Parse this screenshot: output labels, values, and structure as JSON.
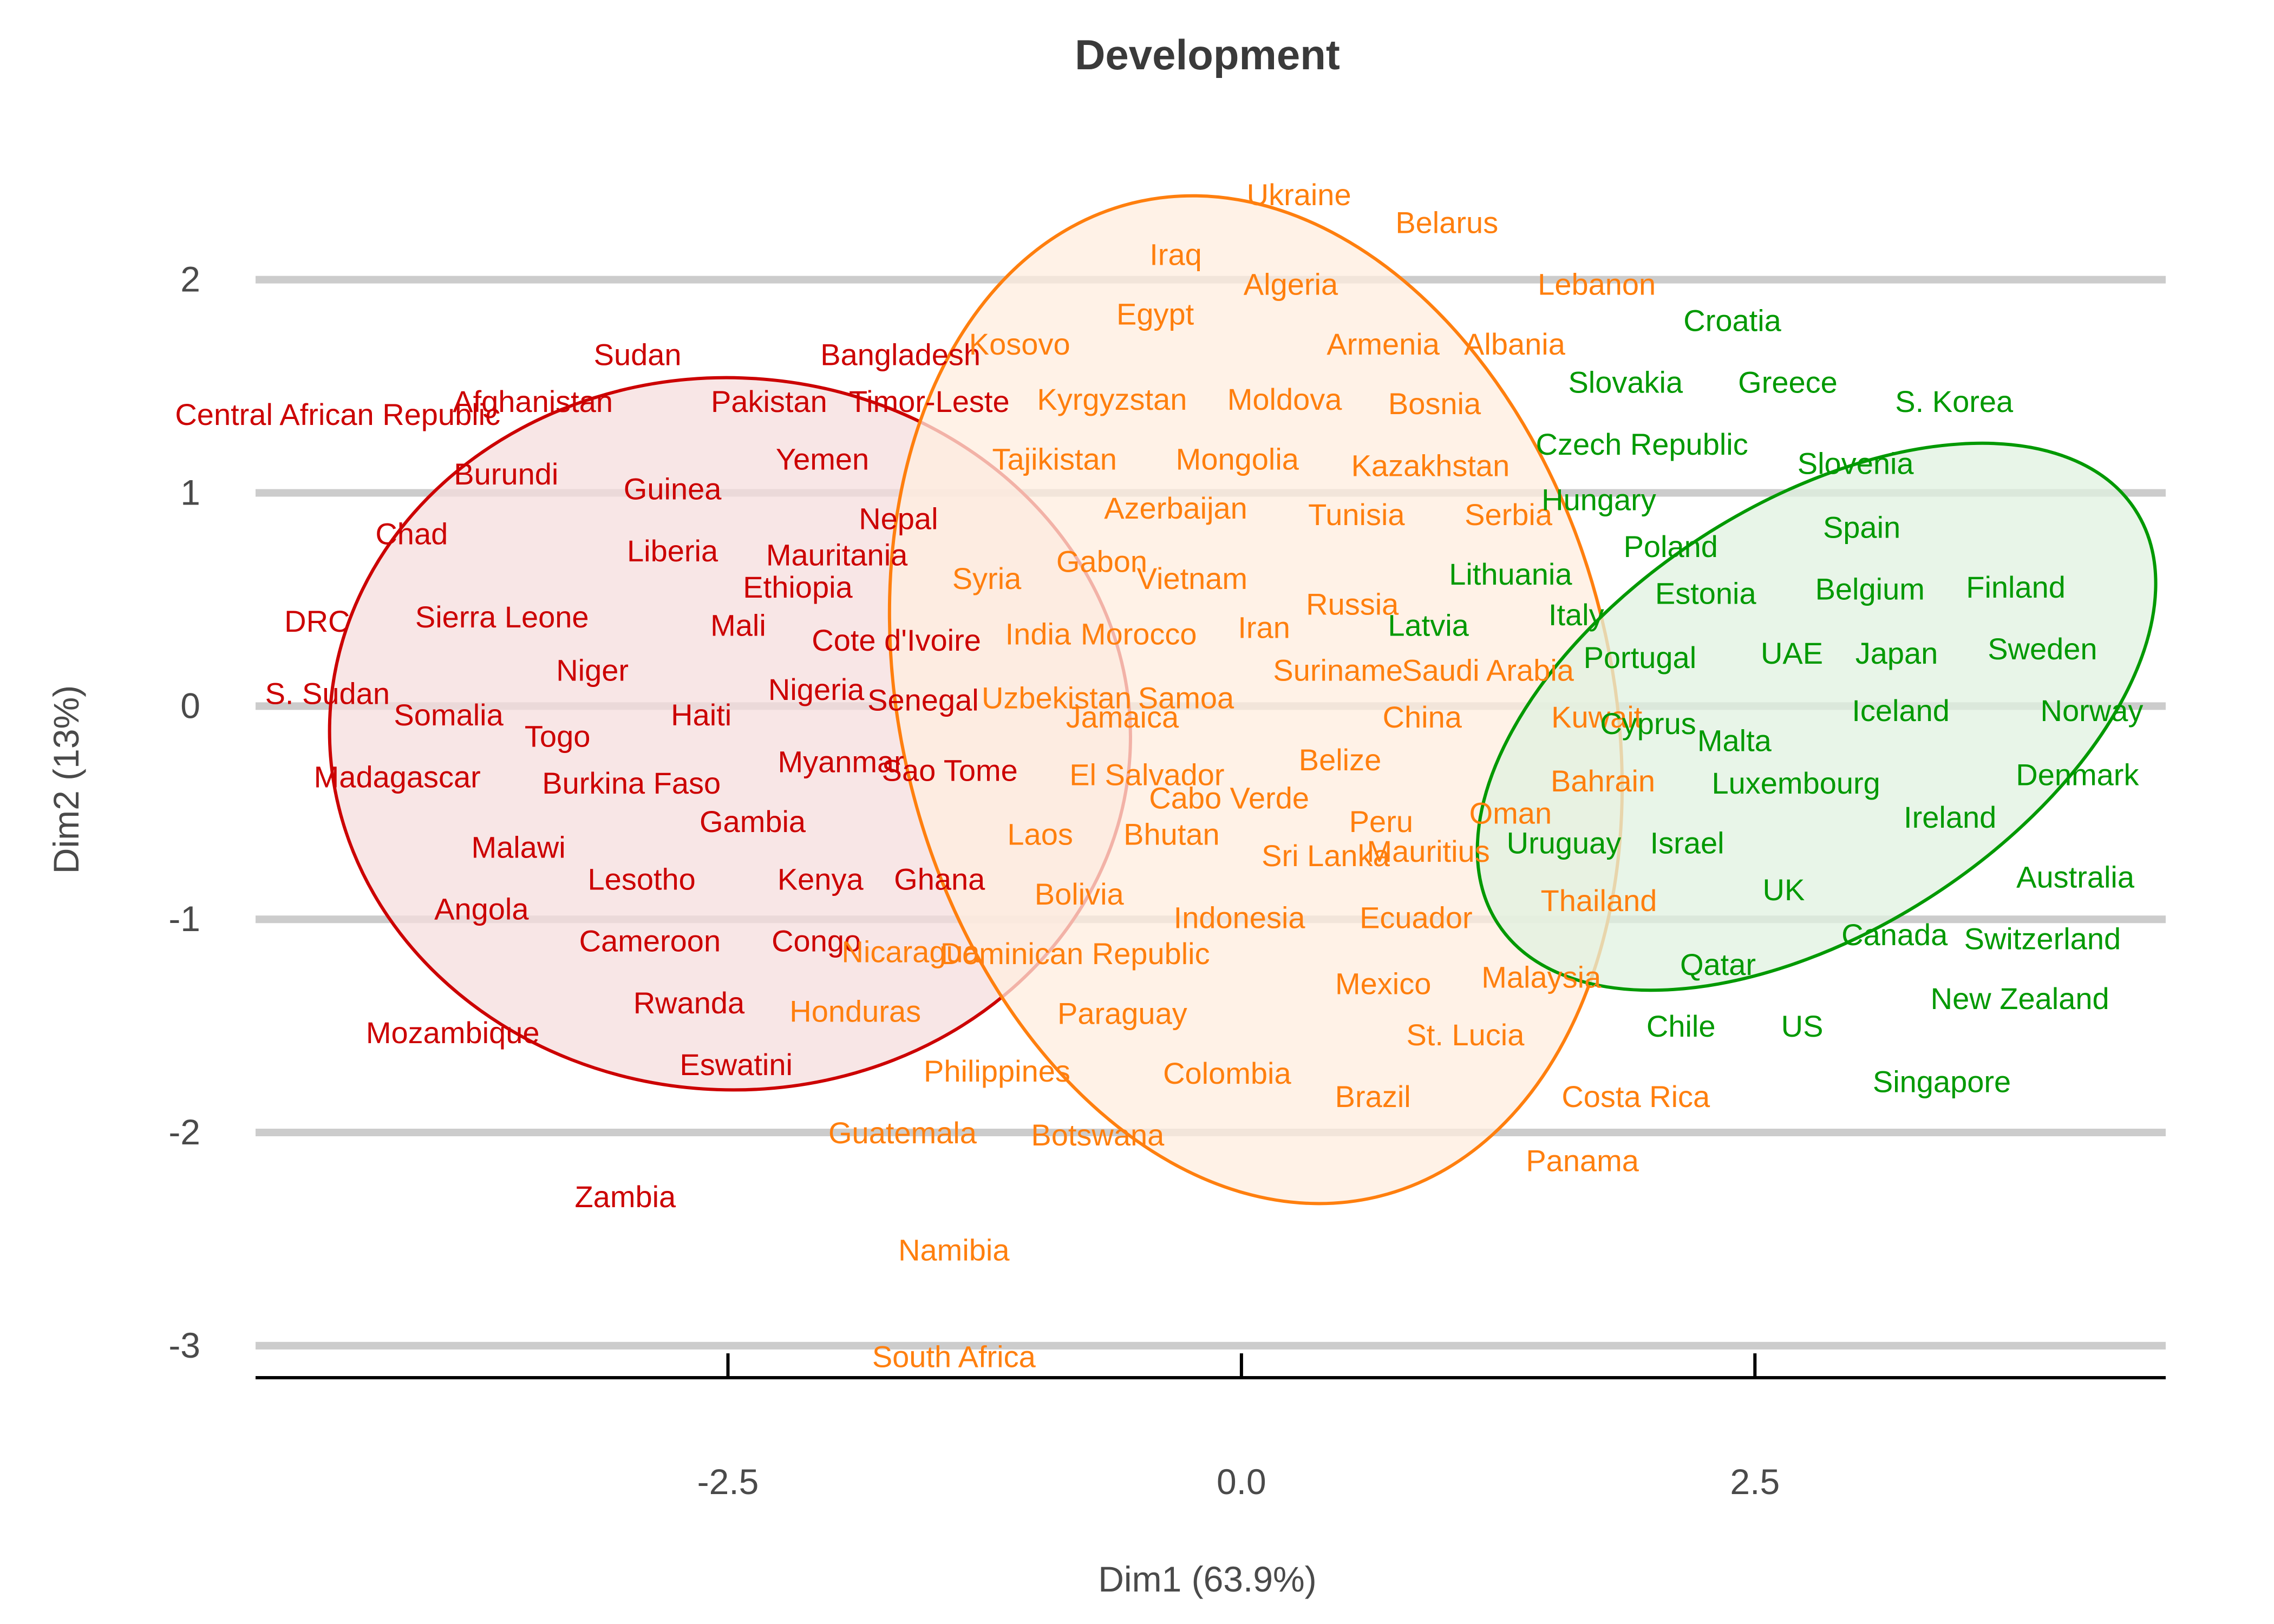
{
  "chart_data": {
    "type": "scatter",
    "title": "Development",
    "xlabel": "Dim1 (63.9%)",
    "ylabel": "Dim2 (13%)",
    "xlim": [
      -4.8,
      4.5
    ],
    "ylim": [
      -3.15,
      2.55
    ],
    "x_ticks": [
      -2.5,
      0.0,
      2.5
    ],
    "x_tick_labels": [
      "-2.5",
      "0.0",
      "2.5"
    ],
    "y_ticks": [
      -3,
      -2,
      -1,
      0,
      1,
      2
    ],
    "y_tick_labels": [
      "-3",
      "-2",
      "-1",
      "0",
      "1",
      "2"
    ],
    "grid": "horizontal major lines only",
    "legend": "none",
    "colors": {
      "cluster_1": "#cc0000",
      "cluster_2": "#ff7f0e",
      "cluster_3": "#009900",
      "grid": "#cccccc",
      "axis": "#000000"
    },
    "ellipses": [
      {
        "group": "cluster_1",
        "cx": -2.49,
        "cy": -0.13,
        "rx": 1.95,
        "ry": 1.67,
        "angle": 2,
        "color": "#cc0000",
        "fill": "#f5dede"
      },
      {
        "group": "cluster_2",
        "cx": 0.07,
        "cy": 0.03,
        "rx": 1.73,
        "ry": 2.4,
        "angle": -14,
        "color": "#ff7f0e",
        "fill": "#ffeddf"
      },
      {
        "group": "cluster_3",
        "cx": 2.8,
        "cy": -0.05,
        "rx": 1.85,
        "ry": 1.0,
        "angle": -33,
        "color": "#009900",
        "fill": "#e0f2e0"
      }
    ],
    "series": [
      {
        "name": "",
        "group": "cluster_1",
        "color": "#cc0000",
        "points": [
          {
            "label": "Central African Republic",
            "x": -4.4,
            "y": 1.37
          },
          {
            "label": "Sudan",
            "x": -2.94,
            "y": 1.65
          },
          {
            "label": "Bangladesh",
            "x": -1.66,
            "y": 1.65
          },
          {
            "label": "Afghanistan",
            "x": -3.45,
            "y": 1.43
          },
          {
            "label": "Pakistan",
            "x": -2.3,
            "y": 1.43
          },
          {
            "label": "Timor-Leste",
            "x": -1.52,
            "y": 1.43
          },
          {
            "label": "Burundi",
            "x": -3.58,
            "y": 1.09
          },
          {
            "label": "Guinea",
            "x": -2.77,
            "y": 1.02
          },
          {
            "label": "Yemen",
            "x": -2.04,
            "y": 1.16
          },
          {
            "label": "Chad",
            "x": -4.04,
            "y": 0.81
          },
          {
            "label": "Nepal",
            "x": -1.67,
            "y": 0.88
          },
          {
            "label": "Liberia",
            "x": -2.77,
            "y": 0.73
          },
          {
            "label": "Mauritania",
            "x": -1.97,
            "y": 0.71
          },
          {
            "label": "Ethiopia",
            "x": -2.16,
            "y": 0.56
          },
          {
            "label": "DRC",
            "x": -4.5,
            "y": 0.4
          },
          {
            "label": "Sierra Leone",
            "x": -3.6,
            "y": 0.42
          },
          {
            "label": "Mali",
            "x": -2.45,
            "y": 0.38
          },
          {
            "label": "Cote d'Ivoire",
            "x": -1.68,
            "y": 0.31
          },
          {
            "label": "Niger",
            "x": -3.16,
            "y": 0.17
          },
          {
            "label": "Nigeria",
            "x": -2.07,
            "y": 0.08
          },
          {
            "label": "Senegal",
            "x": -1.55,
            "y": 0.03
          },
          {
            "label": "S. Sudan",
            "x": -4.45,
            "y": 0.06
          },
          {
            "label": "Somalia",
            "x": -3.86,
            "y": -0.04
          },
          {
            "label": "Haiti",
            "x": -2.63,
            "y": -0.04
          },
          {
            "label": "Togo",
            "x": -3.33,
            "y": -0.14
          },
          {
            "label": "Myanmar",
            "x": -1.95,
            "y": -0.26
          },
          {
            "label": "Sao Tome",
            "x": -1.42,
            "y": -0.3
          },
          {
            "label": "Madagascar",
            "x": -4.11,
            "y": -0.33
          },
          {
            "label": "Burkina Faso",
            "x": -2.97,
            "y": -0.36
          },
          {
            "label": "Gambia",
            "x": -2.38,
            "y": -0.54
          },
          {
            "label": "Malawi",
            "x": -3.52,
            "y": -0.66
          },
          {
            "label": "Lesotho",
            "x": -2.92,
            "y": -0.81
          },
          {
            "label": "Kenya",
            "x": -2.05,
            "y": -0.81
          },
          {
            "label": "Ghana",
            "x": -1.47,
            "y": -0.81
          },
          {
            "label": "Angola",
            "x": -3.7,
            "y": -0.95
          },
          {
            "label": "Cameroon",
            "x": -2.88,
            "y": -1.1
          },
          {
            "label": "Congo",
            "x": -2.07,
            "y": -1.1
          },
          {
            "label": "Rwanda",
            "x": -2.69,
            "y": -1.39
          },
          {
            "label": "Mozambique",
            "x": -3.84,
            "y": -1.53
          },
          {
            "label": "Eswatini",
            "x": -2.46,
            "y": -1.68
          },
          {
            "label": "Zambia",
            "x": -3.0,
            "y": -2.3
          }
        ]
      },
      {
        "name": "",
        "group": "cluster_2",
        "color": "#ff7f0e",
        "points": [
          {
            "label": "Ukraine",
            "x": 0.28,
            "y": 2.4
          },
          {
            "label": "Belarus",
            "x": 1.0,
            "y": 2.27
          },
          {
            "label": "Iraq",
            "x": -0.32,
            "y": 2.12
          },
          {
            "label": "Algeria",
            "x": 0.24,
            "y": 1.98
          },
          {
            "label": "Lebanon",
            "x": 1.73,
            "y": 1.98
          },
          {
            "label": "Egypt",
            "x": -0.42,
            "y": 1.84
          },
          {
            "label": "Kosovo",
            "x": -1.08,
            "y": 1.7
          },
          {
            "label": "Armenia",
            "x": 0.69,
            "y": 1.7
          },
          {
            "label": "Albania",
            "x": 1.33,
            "y": 1.7
          },
          {
            "label": "Kyrgyzstan",
            "x": -0.63,
            "y": 1.44
          },
          {
            "label": "Moldova",
            "x": 0.21,
            "y": 1.44
          },
          {
            "label": "Bosnia",
            "x": 0.94,
            "y": 1.42
          },
          {
            "label": "Tajikistan",
            "x": -0.91,
            "y": 1.16
          },
          {
            "label": "Mongolia",
            "x": -0.02,
            "y": 1.16
          },
          {
            "label": "Kazakhstan",
            "x": 0.92,
            "y": 1.13
          },
          {
            "label": "Azerbaijan",
            "x": -0.32,
            "y": 0.93
          },
          {
            "label": "Tunisia",
            "x": 0.56,
            "y": 0.9
          },
          {
            "label": "Serbia",
            "x": 1.3,
            "y": 0.9
          },
          {
            "label": "Gabon",
            "x": -0.68,
            "y": 0.68
          },
          {
            "label": "Syria",
            "x": -1.24,
            "y": 0.6
          },
          {
            "label": "Vietnam",
            "x": -0.24,
            "y": 0.6
          },
          {
            "label": "Russia",
            "x": 0.54,
            "y": 0.48
          },
          {
            "label": "Iran",
            "x": 0.11,
            "y": 0.37
          },
          {
            "label": "India",
            "x": -0.99,
            "y": 0.34
          },
          {
            "label": "Morocco",
            "x": -0.5,
            "y": 0.34
          },
          {
            "label": "Suriname",
            "x": 0.47,
            "y": 0.17
          },
          {
            "label": "Saudi Arabia",
            "x": 1.2,
            "y": 0.17
          },
          {
            "label": "Uzbekistan",
            "x": -0.9,
            "y": 0.04
          },
          {
            "label": "Samoa",
            "x": -0.27,
            "y": 0.04
          },
          {
            "label": "Jamaica",
            "x": -0.58,
            "y": -0.05
          },
          {
            "label": "China",
            "x": 0.88,
            "y": -0.05
          },
          {
            "label": "Kuwait",
            "x": 1.73,
            "y": -0.05
          },
          {
            "label": "Belize",
            "x": 0.48,
            "y": -0.25
          },
          {
            "label": "El Salvador",
            "x": -0.46,
            "y": -0.32
          },
          {
            "label": "Bahrain",
            "x": 1.76,
            "y": -0.35
          },
          {
            "label": "Cabo Verde",
            "x": -0.06,
            "y": -0.43
          },
          {
            "label": "Peru",
            "x": 0.68,
            "y": -0.54
          },
          {
            "label": "Oman",
            "x": 1.31,
            "y": -0.5
          },
          {
            "label": "Laos",
            "x": -0.98,
            "y": -0.6
          },
          {
            "label": "Bhutan",
            "x": -0.34,
            "y": -0.6
          },
          {
            "label": "Sri Lanka",
            "x": 0.41,
            "y": -0.7
          },
          {
            "label": "Mauritius",
            "x": 0.91,
            "y": -0.68
          },
          {
            "label": "Bolivia",
            "x": -0.79,
            "y": -0.88
          },
          {
            "label": "Thailand",
            "x": 1.74,
            "y": -0.91
          },
          {
            "label": "Indonesia",
            "x": -0.01,
            "y": -0.99
          },
          {
            "label": "Ecuador",
            "x": 0.85,
            "y": -0.99
          },
          {
            "label": "Nicaragua",
            "x": -1.61,
            "y": -1.15
          },
          {
            "label": "Dominican Republic",
            "x": -0.81,
            "y": -1.16
          },
          {
            "label": "Malaysia",
            "x": 1.46,
            "y": -1.27
          },
          {
            "label": "Mexico",
            "x": 0.69,
            "y": -1.3
          },
          {
            "label": "Honduras",
            "x": -1.88,
            "y": -1.43
          },
          {
            "label": "Paraguay",
            "x": -0.58,
            "y": -1.44
          },
          {
            "label": "St. Lucia",
            "x": 1.09,
            "y": -1.54
          },
          {
            "label": "Philippines",
            "x": -1.19,
            "y": -1.71
          },
          {
            "label": "Colombia",
            "x": -0.07,
            "y": -1.72
          },
          {
            "label": "Brazil",
            "x": 0.64,
            "y": -1.83
          },
          {
            "label": "Costa Rica",
            "x": 1.92,
            "y": -1.83
          },
          {
            "label": "Guatemala",
            "x": -1.65,
            "y": -2.0
          },
          {
            "label": "Botswana",
            "x": -0.7,
            "y": -2.01
          },
          {
            "label": "Panama",
            "x": 1.66,
            "y": -2.13
          },
          {
            "label": "Namibia",
            "x": -1.4,
            "y": -2.55
          },
          {
            "label": "South Africa",
            "x": -1.4,
            "y": -3.05
          }
        ]
      },
      {
        "name": "",
        "group": "cluster_3",
        "color": "#009900",
        "points": [
          {
            "label": "Croatia",
            "x": 2.39,
            "y": 1.81
          },
          {
            "label": "Slovakia",
            "x": 1.87,
            "y": 1.52
          },
          {
            "label": "Greece",
            "x": 2.66,
            "y": 1.52
          },
          {
            "label": "S. Korea",
            "x": 3.47,
            "y": 1.43
          },
          {
            "label": "Czech Republic",
            "x": 1.95,
            "y": 1.23
          },
          {
            "label": "Slovenia",
            "x": 2.99,
            "y": 1.14
          },
          {
            "label": "Hungary",
            "x": 1.74,
            "y": 0.97
          },
          {
            "label": "Spain",
            "x": 3.02,
            "y": 0.84
          },
          {
            "label": "Poland",
            "x": 2.09,
            "y": 0.75
          },
          {
            "label": "Lithuania",
            "x": 1.31,
            "y": 0.62
          },
          {
            "label": "Finland",
            "x": 3.77,
            "y": 0.56
          },
          {
            "label": "Estonia",
            "x": 2.26,
            "y": 0.53
          },
          {
            "label": "Belgium",
            "x": 3.06,
            "y": 0.55
          },
          {
            "label": "Italy",
            "x": 1.63,
            "y": 0.43
          },
          {
            "label": "Latvia",
            "x": 0.91,
            "y": 0.38
          },
          {
            "label": "Sweden",
            "x": 3.9,
            "y": 0.27
          },
          {
            "label": "Portugal",
            "x": 1.94,
            "y": 0.23
          },
          {
            "label": "UAE",
            "x": 2.68,
            "y": 0.25
          },
          {
            "label": "Japan",
            "x": 3.19,
            "y": 0.25
          },
          {
            "label": "Iceland",
            "x": 3.21,
            "y": -0.02
          },
          {
            "label": "Norway",
            "x": 4.14,
            "y": -0.02
          },
          {
            "label": "Cyprus",
            "x": 1.98,
            "y": -0.08
          },
          {
            "label": "Malta",
            "x": 2.4,
            "y": -0.16
          },
          {
            "label": "Denmark",
            "x": 4.07,
            "y": -0.32
          },
          {
            "label": "Luxembourg",
            "x": 2.7,
            "y": -0.36
          },
          {
            "label": "Ireland",
            "x": 3.45,
            "y": -0.52
          },
          {
            "label": "Uruguay",
            "x": 1.57,
            "y": -0.64
          },
          {
            "label": "Israel",
            "x": 2.17,
            "y": -0.64
          },
          {
            "label": "Australia",
            "x": 4.06,
            "y": -0.8
          },
          {
            "label": "UK",
            "x": 2.64,
            "y": -0.86
          },
          {
            "label": "Canada",
            "x": 3.18,
            "y": -1.07
          },
          {
            "label": "Switzerland",
            "x": 3.9,
            "y": -1.09
          },
          {
            "label": "Qatar",
            "x": 2.32,
            "y": -1.21
          },
          {
            "label": "New Zealand",
            "x": 3.79,
            "y": -1.37
          },
          {
            "label": "Chile",
            "x": 2.14,
            "y": -1.5
          },
          {
            "label": "US",
            "x": 2.73,
            "y": -1.5
          },
          {
            "label": "Singapore",
            "x": 3.41,
            "y": -1.76
          }
        ]
      }
    ]
  }
}
